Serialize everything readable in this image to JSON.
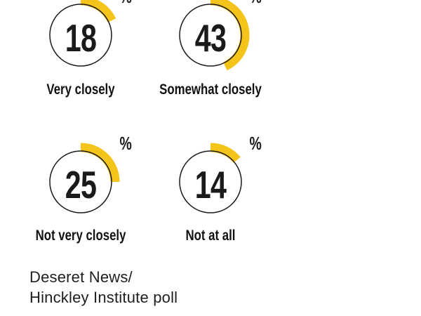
{
  "chart_data": {
    "type": "pie",
    "subtype": "donut-progress-rings",
    "categories": [
      "Very closely",
      "Somewhat closely",
      "Not very closely",
      "Not at all"
    ],
    "values": [
      18,
      43,
      25,
      14
    ],
    "unit": "%",
    "start_angle_deg": 0,
    "direction": "clockwise",
    "arc_color": "#f5c41a",
    "ring_outline_color": "#1a1a1a",
    "text_color": "#1a1a1a",
    "source": "Deseret News/Hinckley Institute poll"
  },
  "charts": [
    {
      "value": 18,
      "unit": "%",
      "label": "Very closely"
    },
    {
      "value": 43,
      "unit": "%",
      "label": "Somewhat closely"
    },
    {
      "value": 25,
      "unit": "%",
      "label": "Not very closely"
    },
    {
      "value": 14,
      "unit": "%",
      "label": "Not at all"
    }
  ],
  "attribution": {
    "line1": "Deseret News/",
    "line2": "Hinckley Institute poll"
  }
}
